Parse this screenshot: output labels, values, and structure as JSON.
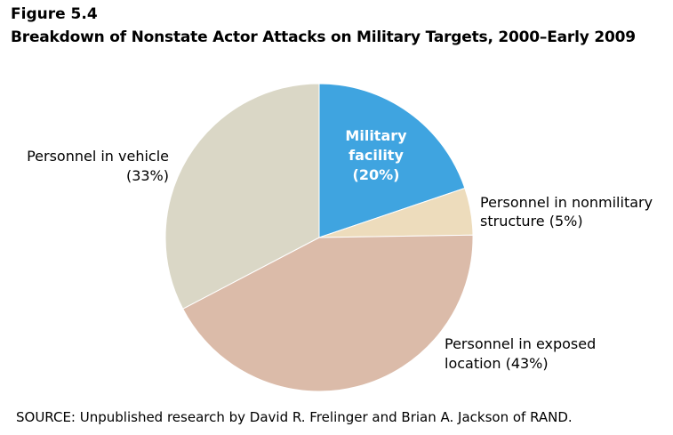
{
  "figure": {
    "number": "Figure 5.4",
    "title": "Breakdown of Nonstate Actor Attacks on Military Targets, 2000–Early 2009"
  },
  "source": "SOURCE: Unpublished research by David R. Frelinger and Brian A. Jackson of RAND.",
  "chart_data": {
    "type": "pie",
    "title": "Breakdown of Nonstate Actor Attacks on Military Targets, 2000–Early 2009",
    "start": "12 o'clock",
    "direction": "clockwise",
    "slices": [
      {
        "label_lines": [
          "Military",
          "facility",
          "(20%)"
        ],
        "value": 20,
        "color": "#3fa4e0",
        "label_color": "#ffffff",
        "label_bold": true,
        "label_position": "inside"
      },
      {
        "label_lines": [
          "Personnel in nonmilitary",
          "structure (5%)"
        ],
        "value": 5,
        "color": "#eddcbc",
        "label_color": "#000000",
        "label_bold": false,
        "label_position": "outside-right"
      },
      {
        "label_lines": [
          "Personnel in exposed",
          "location (43%)"
        ],
        "value": 43,
        "color": "#dbbba9",
        "label_color": "#000000",
        "label_bold": false,
        "label_position": "outside-right"
      },
      {
        "label_lines": [
          "Personnel in vehicle",
          "(33%)"
        ],
        "value": 33,
        "color": "#dad7c6",
        "label_color": "#000000",
        "label_bold": false,
        "label_position": "outside-left"
      }
    ]
  }
}
